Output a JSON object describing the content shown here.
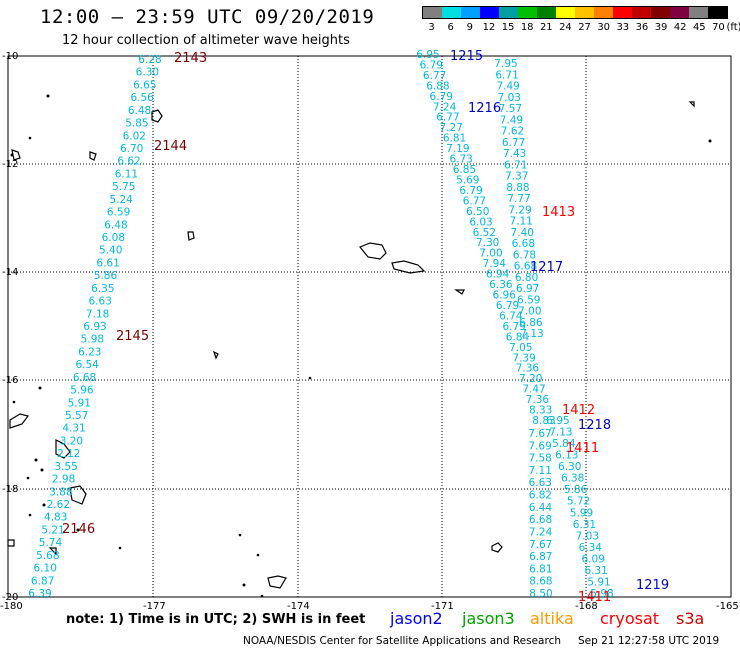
{
  "title": "12:00 – 23:59 UTC 09/20/2019",
  "subtitle": "12 hour collection of altimeter wave heights",
  "colorbar": {
    "labels": [
      "3",
      "6",
      "9",
      "12",
      "15",
      "18",
      "21",
      "24",
      "27",
      "30",
      "33",
      "36",
      "39",
      "42",
      "45",
      "70",
      "(ft)"
    ],
    "colors": [
      "#808080",
      "#00e0e0",
      "#00a0ff",
      "#0000ff",
      "#00a0a0",
      "#00c000",
      "#008000",
      "#ffff00",
      "#ffc000",
      "#ff8000",
      "#ff0000",
      "#c00000",
      "#800000",
      "#800040",
      "#808080",
      "#000000"
    ]
  },
  "axes": {
    "lat_labels": [
      "-10",
      "-12",
      "-14",
      "-16",
      "-18",
      "-20"
    ],
    "lon_labels": [
      "-180",
      "-177",
      "-174",
      "-171",
      "-168",
      "-165"
    ]
  },
  "satellites": [
    {
      "name": "jason2",
      "color": "#0000ff"
    },
    {
      "name": "jason3",
      "color": "#00a000"
    },
    {
      "name": "altika",
      "color": "#ff9900"
    },
    {
      "name": "cryosat",
      "color": "#ff0000"
    },
    {
      "name": "s3a",
      "color": "#cc0000"
    }
  ],
  "note": "note:  1) Time is in UTC;  2) SWH is in feet",
  "credit": "NOAA/NESDIS Center for Satellite Applications and Research",
  "timestamp": "Sep 21 12:27:58 UTC 2019",
  "tracks": [
    {
      "id": "left",
      "color": "#00b8e0",
      "values": [
        "6.28",
        "6.30",
        "6.65",
        "6.56",
        "6.48",
        "5.85",
        "6.02",
        "6.70",
        "6.62",
        "6.11",
        "5.75",
        "5.24",
        "6.59",
        "6.48",
        "6.08",
        "5.40",
        "6.61",
        "5.86",
        "6.35",
        "6.63",
        "7.18",
        "6.93",
        "5.98",
        "6.23",
        "6.54",
        "6.68",
        "5.96",
        "5.91",
        "5.57",
        "4.31",
        "3.20",
        "2.12",
        "3.55",
        "2.98",
        "3.88",
        "2.62",
        "4.83",
        "5.21",
        "5.74",
        "5.68",
        "6.10",
        "6.87",
        "6.39"
      ]
    },
    {
      "id": "mid-a",
      "color": "#00b8e0",
      "values": [
        "6.95",
        "6.79",
        "6.77",
        "6.88",
        "6.79",
        "7.24",
        "6.77",
        "7.27",
        "6.81",
        "7.19",
        "6.73",
        "6.85",
        "5.69",
        "6.79",
        "6.77",
        "6.50",
        "6.03",
        "6.52",
        "7.30",
        "7.00",
        "7.94",
        "6.94",
        "6.36",
        "6.96",
        "6.79",
        "6.74",
        "6.79",
        "6.84",
        "7.05",
        "7.39",
        "7.36",
        "7.20",
        "7.47",
        "7.36",
        "8.33",
        "8.83"
      ]
    },
    {
      "id": "mid-b",
      "color": "#00b8e0",
      "values": [
        "7.95",
        "6.71",
        "7.49",
        "7.03",
        "7.57",
        "7.49",
        "7.62",
        "6.77",
        "7.43",
        "6.71",
        "7.37",
        "8.88",
        "7.77",
        "7.29",
        "7.11",
        "7.40",
        "6.68",
        "6.78",
        "6.68",
        "6.80",
        "6.97",
        "6.59",
        "7.00",
        "6.86",
        "7.13"
      ]
    },
    {
      "id": "right-a",
      "color": "#00b8e0",
      "values": [
        "7.67",
        "7.69",
        "7.58",
        "7.11",
        "6.63",
        "6.82",
        "6.44",
        "6.68",
        "7.24",
        "7.67",
        "6.87",
        "6.81",
        "8.68",
        "8.50"
      ]
    },
    {
      "id": "right-b",
      "color": "#00b8e0",
      "values": [
        "6.95",
        "7.13",
        "5.84",
        "6.13",
        "6.30",
        "6.38",
        "5.86",
        "5.72",
        "5.99",
        "6.31",
        "7.03",
        "6.34",
        "6.09",
        "6.31",
        "5.91",
        "5.98"
      ]
    }
  ],
  "pass_labels": [
    {
      "text": "2143",
      "color": "#800000"
    },
    {
      "text": "2144",
      "color": "#800000"
    },
    {
      "text": "2145",
      "color": "#800000"
    },
    {
      "text": "2146",
      "color": "#800000"
    },
    {
      "text": "1215",
      "color": "#0000cc"
    },
    {
      "text": "1216",
      "color": "#0000cc"
    },
    {
      "text": "1217",
      "color": "#0000cc"
    },
    {
      "text": "1218",
      "color": "#0000cc"
    },
    {
      "text": "1219",
      "color": "#0000cc"
    },
    {
      "text": "1413",
      "color": "#ff0000"
    },
    {
      "text": "1412",
      "color": "#ff0000"
    },
    {
      "text": "1411",
      "color": "#ff0000"
    },
    {
      "text": "1411",
      "color": "#ff0000"
    }
  ]
}
